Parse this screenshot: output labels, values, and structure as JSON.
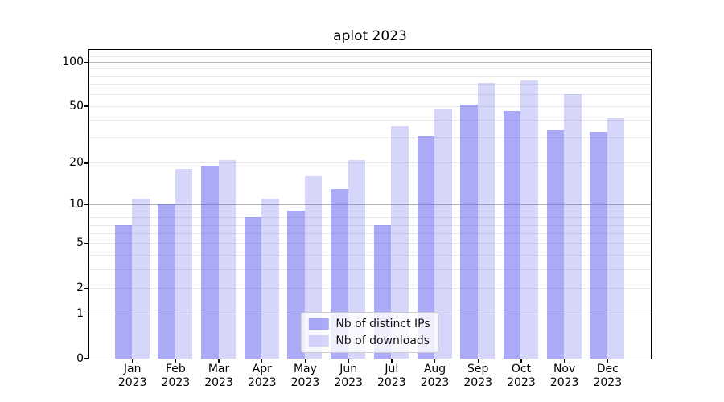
{
  "title": "aplot 2023",
  "chart_data": {
    "type": "bar",
    "title": "aplot 2023",
    "xlabel": "",
    "ylabel": "",
    "yscale": "log1p",
    "ylim": [
      0,
      121
    ],
    "grid": true,
    "legend_position": "lower center",
    "categories": [
      "Jan",
      "Feb",
      "Mar",
      "Apr",
      "May",
      "Jun",
      "Jul",
      "Aug",
      "Sep",
      "Oct",
      "Nov",
      "Dec"
    ],
    "year_label": "2023",
    "y_ticks": [
      0,
      1,
      2,
      5,
      10,
      20,
      50,
      100
    ],
    "major_grid_values": [
      1,
      10,
      100
    ],
    "minor_grid_values": [
      2,
      3,
      4,
      5,
      6,
      7,
      8,
      9,
      20,
      30,
      40,
      50,
      60,
      70,
      80,
      90,
      110
    ],
    "series": [
      {
        "name": "Nb of distinct IPs",
        "color": "rgba(85,85,238,0.5)",
        "values": [
          7,
          10,
          19,
          8,
          9,
          13,
          7,
          31,
          51,
          46,
          34,
          33
        ]
      },
      {
        "name": "Nb of downloads",
        "color": "rgba(85,85,238,0.24)",
        "values": [
          11,
          18,
          21,
          11,
          16,
          21,
          36,
          47,
          72,
          75,
          60,
          41
        ]
      }
    ],
    "colors": {
      "major_grid": "#b5b5b5",
      "minor_grid": "#e9e9e9",
      "spine": "#000000",
      "text": "#000000"
    }
  }
}
